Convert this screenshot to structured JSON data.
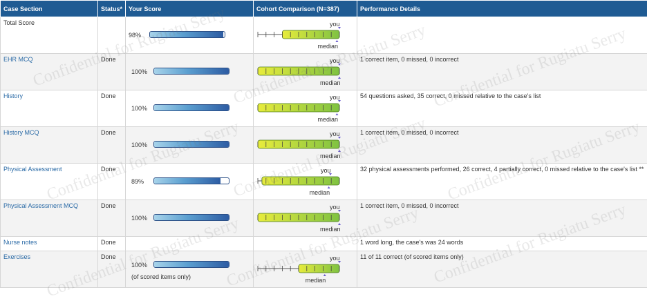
{
  "header": {
    "case_section": "Case Section",
    "status": "Status*",
    "your_score": "Your Score",
    "cohort": "Cohort Comparison (N=387)",
    "details": "Performance Details"
  },
  "markers": {
    "you": "you",
    "median": "median"
  },
  "watermark": "Confidential for Rugiatu Serry",
  "colors": {
    "header": "#1f5b93",
    "link": "#2a6aa6",
    "bar_dark": "#2d5ca3",
    "cohort_yellow": "#e8ec3c",
    "cohort_green": "#7fc242"
  },
  "rows": [
    {
      "section": "Total Score",
      "link": false,
      "status": "",
      "score_label": "98%",
      "score_value": 98,
      "score_note": "",
      "has_cohort": true,
      "cohort_range": [
        0.3,
        1.0
      ],
      "you_pos": 1.0,
      "median_pos": 0.97,
      "details": ""
    },
    {
      "section": "EHR MCQ",
      "link": true,
      "status": "Done",
      "score_label": "100%",
      "score_value": 100,
      "score_note": "",
      "has_cohort": true,
      "cohort_range": [
        0.0,
        1.0
      ],
      "you_pos": 1.0,
      "median_pos": 1.0,
      "details": "1 correct item, 0 missed, 0 incorrect"
    },
    {
      "section": "History",
      "link": true,
      "status": "Done",
      "score_label": "100%",
      "score_value": 100,
      "score_note": "",
      "has_cohort": true,
      "cohort_range": [
        0.0,
        1.0
      ],
      "you_pos": 1.0,
      "median_pos": 0.97,
      "details": "54 questions asked, 35 correct, 0 missed relative to the case's list"
    },
    {
      "section": "History MCQ",
      "link": true,
      "status": "Done",
      "score_label": "100%",
      "score_value": 100,
      "score_note": "",
      "has_cohort": true,
      "cohort_range": [
        0.0,
        1.0
      ],
      "you_pos": 1.0,
      "median_pos": 1.0,
      "details": "1 correct item, 0 missed, 0 incorrect"
    },
    {
      "section": "Physical Assessment",
      "link": true,
      "status": "Done",
      "score_label": "89%",
      "score_value": 89,
      "score_note": "",
      "has_cohort": true,
      "cohort_range": [
        0.05,
        1.0
      ],
      "you_pos": 0.89,
      "median_pos": 0.87,
      "details": "32 physical assessments performed, 26 correct, 4 partially correct, 0 missed relative to the case's list **"
    },
    {
      "section": "Physical Assessment MCQ",
      "link": true,
      "status": "Done",
      "score_label": "100%",
      "score_value": 100,
      "score_note": "",
      "has_cohort": true,
      "cohort_range": [
        0.0,
        1.0
      ],
      "you_pos": 1.0,
      "median_pos": 1.0,
      "details": "1 correct item, 0 missed, 0 incorrect"
    },
    {
      "section": "Nurse notes",
      "link": true,
      "status": "Done",
      "score_label": "",
      "score_value": null,
      "score_note": "",
      "has_cohort": false,
      "details": "1 word long, the case's was 24 words"
    },
    {
      "section": "Exercises",
      "link": true,
      "status": "Done",
      "score_label": "100%",
      "score_value": 100,
      "score_note": "(of scored items only)",
      "has_cohort": true,
      "cohort_range": [
        0.5,
        1.0
      ],
      "you_pos": 1.0,
      "median_pos": 0.82,
      "details": "11 of 11 correct (of scored items only)"
    }
  ]
}
